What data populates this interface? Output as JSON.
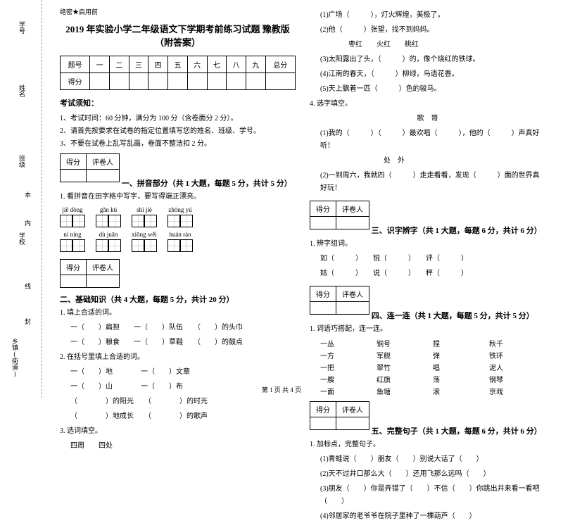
{
  "leftMargin": {
    "labels": [
      "学号",
      "姓名",
      "班级",
      "学校",
      "乡镇(街道)"
    ],
    "smallChars": [
      "本",
      "内",
      "线",
      "封"
    ]
  },
  "secret": "绝密★启用前",
  "title": "2019 年实验小学二年级语文下学期考前练习试题 豫教版（附答案）",
  "scoreTable": {
    "headers": [
      "题号",
      "一",
      "二",
      "三",
      "四",
      "五",
      "六",
      "七",
      "八",
      "九",
      "总分"
    ],
    "row2": "得分"
  },
  "noticeTitle": "考试须知：",
  "notices": [
    "1、考试时间：60 分钟，满分为 100 分（含卷面分 2 分）。",
    "2、请首先按要求在试卷的指定位置填写您的姓名、班级、学号。",
    "3、不要在试卷上乱写乱画，卷面不整洁扣 2 分。"
  ],
  "scoreBoxLabels": [
    "得分",
    "评卷人"
  ],
  "part1": {
    "title": "一、拼音部分（共 1 大题，每题 5 分，共计 5 分）",
    "q1": "1. 看拼音在田字格中写字，要写得端正漂亮。",
    "pinyinRow1": [
      "jiě  dòng",
      "gǎn  kū",
      "shì  jiè",
      "zhōng  yú"
    ],
    "pinyinRow2": [
      "ní  níng",
      "dù juān",
      "xiōng  wěi",
      "huán  rào"
    ]
  },
  "part2": {
    "title": "二、基础知识（共 4 大题，每题 5 分，共计 20 分）",
    "q1": "1. 填上合适的词。",
    "q1lines": [
      "一（　　）扁担　　一（　　）队伍　　（　　）的头巾",
      "一（　　）粮食　　一（　　）草鞋　　（　　）的鼓点"
    ],
    "q2": "2. 在括号里填上合适的词。",
    "q2lines": [
      "一（　　）地　　　　一（　　）文章",
      "一（　　）山　　　　一（　　）布",
      "（　　　　）的阳光　　（　　　　）的时光",
      "（　　　　）地成长　　（　　　　）的歌声"
    ],
    "q3": "3. 选词填空。",
    "q3sub": "四周　　四处"
  },
  "rightCol": {
    "q3lines": [
      "(1)广场（　　　），灯火辉煌，美极了。",
      "(2)他（　　　）张望，找不到妈妈。",
      "　　　　枣红　　火红　　桃红",
      "(3)太阳露出了头，（　　　）的，像个烧红的铁球。",
      "(4)江南的春天，（　　　）柳绿，鸟语花香。",
      "(5)天上飘着一匹（　　　）色的骏马。"
    ],
    "q4": "4. 选字填空。",
    "q4sub": "歌　哥",
    "q4lines": [
      "(1)我的（　　　）（　　　）最欢唱（　　　），他的（　　　）声真好听！",
      "　　　　　　　　　处　外",
      "(2)一到周六，我就四（　　　）走走看看，发现（　　　）面的世界真好玩！"
    ]
  },
  "part3": {
    "title": "三、识字辨字（共 1 大题，每题 6 分，共计 6 分）",
    "q1": "1. 辨字组词。",
    "lines": [
      "如（　　　）　　锐（　　　）　　评（　　　）",
      "姑（　　　）　　说（　　　）　　秤（　　　）"
    ]
  },
  "part4": {
    "title": "四、连一连（共 1 大题，每题 5 分，共计 5 分）",
    "q1": "1. 词语巧搭配，连一连。",
    "matches": [
      [
        "一丛",
        "铜号",
        "捏",
        "秋千"
      ],
      [
        "一方",
        "军舰",
        "弹",
        "铁环"
      ],
      [
        "一把",
        "翠竹",
        "唱",
        "泥人"
      ],
      [
        "一艘",
        "红旗",
        "荡",
        "钢琴"
      ],
      [
        "一面",
        "鱼塘",
        "滚",
        "京戏"
      ]
    ]
  },
  "part5": {
    "title": "五、完整句子（共 1 大题，每题 6 分，共计 6 分）",
    "q1": "1. 加标点，完整句子。",
    "lines": [
      "(1)青蛙说（　　）朋友（　　）别说大话了（　　）",
      "(2)天不过井口那么大（　　）还用飞那么远吗（　　）",
      "(3)朋友（　　）你是弄错了（　　）不信（　　）你跳出井来看一看吧（　　）",
      "(4)邻居家的老爷爷在院子里种了一棵葫芦（　　）"
    ]
  },
  "footer": "第 1 页 共 4 页"
}
